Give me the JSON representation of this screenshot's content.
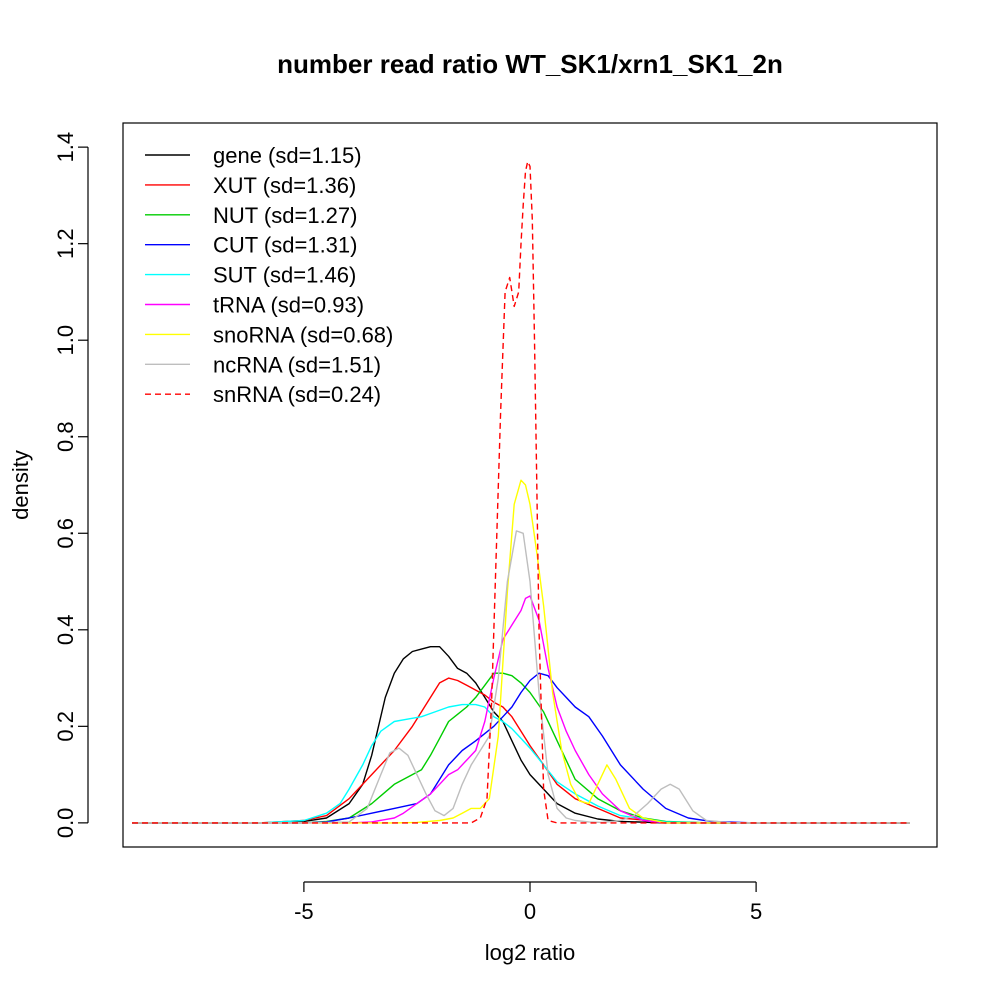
{
  "chart_data": {
    "type": "line",
    "title": "number read ratio WT_SK1/xrn1_SK1_2n",
    "xlabel": "log2 ratio",
    "ylabel": "density",
    "xlim": [
      -9,
      9
    ],
    "ylim": [
      -0.05,
      1.45
    ],
    "xticks": [
      -5,
      0,
      5
    ],
    "yticks": [
      0.0,
      0.2,
      0.4,
      0.6,
      0.8,
      1.0,
      1.2,
      1.4
    ],
    "xtick_labels": [
      "-5",
      "0",
      "5"
    ],
    "ytick_labels": [
      "0.0",
      "0.2",
      "0.4",
      "0.6",
      "0.8",
      "1.0",
      "1.2",
      "1.4"
    ],
    "grid": false,
    "legend_position": "top-left",
    "series": [
      {
        "name": "gene (sd=1.15)",
        "color": "#000000",
        "dashed": false,
        "x": [
          -8.8,
          -6,
          -5,
          -4.5,
          -4,
          -3.7,
          -3.5,
          -3.2,
          -3,
          -2.8,
          -2.6,
          -2.4,
          -2.2,
          -2,
          -1.8,
          -1.6,
          -1.4,
          -1.2,
          -1,
          -0.8,
          -0.6,
          -0.4,
          -0.2,
          0,
          0.3,
          0.6,
          1,
          1.5,
          2,
          3,
          4,
          5,
          8.4
        ],
        "y": [
          0,
          0,
          0.003,
          0.01,
          0.04,
          0.08,
          0.14,
          0.26,
          0.31,
          0.34,
          0.355,
          0.36,
          0.365,
          0.365,
          0.345,
          0.32,
          0.31,
          0.29,
          0.26,
          0.23,
          0.21,
          0.17,
          0.13,
          0.1,
          0.07,
          0.04,
          0.02,
          0.008,
          0.003,
          0,
          0,
          0,
          0
        ]
      },
      {
        "name": "XUT (sd=1.36)",
        "color": "#ff0000",
        "dashed": false,
        "x": [
          -8.8,
          -6,
          -5,
          -4.5,
          -4,
          -3.5,
          -3,
          -2.6,
          -2.2,
          -2,
          -1.8,
          -1.6,
          -1.4,
          -1.2,
          -1,
          -0.8,
          -0.6,
          -0.4,
          -0.2,
          0,
          0.3,
          0.6,
          1,
          1.5,
          2,
          3,
          4,
          8.4
        ],
        "y": [
          0,
          0,
          0.005,
          0.015,
          0.05,
          0.1,
          0.15,
          0.2,
          0.26,
          0.29,
          0.3,
          0.295,
          0.285,
          0.275,
          0.265,
          0.25,
          0.24,
          0.22,
          0.19,
          0.16,
          0.12,
          0.08,
          0.05,
          0.03,
          0.01,
          0.002,
          0,
          0
        ]
      },
      {
        "name": "NUT (sd=1.27)",
        "color": "#00cd00",
        "dashed": false,
        "x": [
          -8.8,
          -6,
          -5,
          -4.5,
          -4,
          -3.5,
          -3,
          -2.7,
          -2.4,
          -2.2,
          -2,
          -1.8,
          -1.6,
          -1.4,
          -1.2,
          -1,
          -0.8,
          -0.6,
          -0.4,
          -0.2,
          0,
          0.3,
          0.6,
          1,
          1.5,
          2,
          2.5,
          3,
          4,
          8.4
        ],
        "y": [
          0,
          0,
          0,
          0.003,
          0.01,
          0.04,
          0.08,
          0.095,
          0.11,
          0.14,
          0.175,
          0.21,
          0.225,
          0.24,
          0.26,
          0.285,
          0.31,
          0.31,
          0.305,
          0.29,
          0.27,
          0.23,
          0.17,
          0.09,
          0.05,
          0.025,
          0.01,
          0.003,
          0,
          0
        ]
      },
      {
        "name": "CUT (sd=1.31)",
        "color": "#0000ff",
        "dashed": false,
        "x": [
          -8.8,
          -6,
          -5,
          -4.5,
          -4,
          -3.5,
          -3,
          -2.5,
          -2.2,
          -2,
          -1.8,
          -1.5,
          -1.2,
          -1,
          -0.8,
          -0.6,
          -0.4,
          -0.2,
          0,
          0.2,
          0.4,
          0.6,
          0.8,
          1,
          1.3,
          1.6,
          2,
          2.5,
          3,
          3.5,
          4,
          5,
          8.4
        ],
        "y": [
          0,
          0,
          0,
          0.002,
          0.01,
          0.02,
          0.03,
          0.04,
          0.06,
          0.09,
          0.12,
          0.15,
          0.17,
          0.185,
          0.2,
          0.22,
          0.24,
          0.27,
          0.295,
          0.31,
          0.305,
          0.28,
          0.26,
          0.24,
          0.22,
          0.18,
          0.12,
          0.07,
          0.03,
          0.01,
          0.003,
          0,
          0
        ]
      },
      {
        "name": "SUT (sd=1.46)",
        "color": "#00ffff",
        "dashed": false,
        "x": [
          -8.8,
          -6,
          -5,
          -4.5,
          -4.2,
          -4,
          -3.7,
          -3.5,
          -3.3,
          -3,
          -2.7,
          -2.4,
          -2.1,
          -1.8,
          -1.5,
          -1.2,
          -1,
          -0.8,
          -0.6,
          -0.4,
          -0.2,
          0,
          0.3,
          0.6,
          1,
          1.5,
          2,
          3,
          4,
          8.4
        ],
        "y": [
          0,
          0,
          0.005,
          0.02,
          0.04,
          0.07,
          0.12,
          0.16,
          0.19,
          0.21,
          0.215,
          0.22,
          0.23,
          0.24,
          0.245,
          0.245,
          0.24,
          0.22,
          0.21,
          0.195,
          0.175,
          0.155,
          0.12,
          0.085,
          0.06,
          0.035,
          0.015,
          0.002,
          0,
          0
        ]
      },
      {
        "name": "tRNA (sd=0.93)",
        "color": "#ff00ff",
        "dashed": false,
        "x": [
          -8.8,
          -5,
          -4,
          -3.5,
          -3,
          -2.8,
          -2.5,
          -2.2,
          -2,
          -1.8,
          -1.6,
          -1.4,
          -1.2,
          -1,
          -0.8,
          -0.6,
          -0.4,
          -0.2,
          -0.1,
          0,
          0.2,
          0.4,
          0.6,
          0.8,
          1,
          1.3,
          1.6,
          2,
          2.5,
          3,
          8.4
        ],
        "y": [
          0,
          0,
          0,
          0.002,
          0.01,
          0.02,
          0.04,
          0.06,
          0.08,
          0.1,
          0.11,
          0.13,
          0.15,
          0.21,
          0.3,
          0.38,
          0.41,
          0.44,
          0.465,
          0.47,
          0.42,
          0.32,
          0.24,
          0.19,
          0.15,
          0.1,
          0.06,
          0.025,
          0.005,
          0,
          0
        ]
      },
      {
        "name": "snoRNA (sd=0.68)",
        "color": "#ffff00",
        "dashed": false,
        "x": [
          -8.8,
          -4,
          -3,
          -2.5,
          -2,
          -1.7,
          -1.5,
          -1.3,
          -1.1,
          -0.9,
          -0.7,
          -0.5,
          -0.35,
          -0.2,
          -0.1,
          0,
          0.15,
          0.3,
          0.5,
          0.7,
          0.9,
          1.1,
          1.3,
          1.5,
          1.7,
          1.9,
          2.2,
          2.5,
          3,
          8.4
        ],
        "y": [
          0,
          0,
          0,
          0.001,
          0.005,
          0.01,
          0.02,
          0.03,
          0.03,
          0.05,
          0.18,
          0.48,
          0.66,
          0.71,
          0.7,
          0.66,
          0.56,
          0.45,
          0.27,
          0.15,
          0.08,
          0.045,
          0.04,
          0.08,
          0.12,
          0.09,
          0.03,
          0.01,
          0,
          0
        ]
      },
      {
        "name": "ncRNA (sd=1.51)",
        "color": "#bebebe",
        "dashed": false,
        "x": [
          -8.8,
          -5,
          -4,
          -3.6,
          -3.3,
          -3.1,
          -2.9,
          -2.7,
          -2.5,
          -2.3,
          -2.1,
          -1.9,
          -1.7,
          -1.5,
          -1.3,
          -1.1,
          -0.9,
          -0.7,
          -0.5,
          -0.3,
          -0.15,
          0,
          0.2,
          0.4,
          0.6,
          0.8,
          1,
          1.3,
          1.6,
          2,
          2.3,
          2.6,
          2.9,
          3.1,
          3.3,
          3.6,
          3.9,
          4.5,
          8.4
        ],
        "y": [
          0,
          0,
          0.002,
          0.03,
          0.1,
          0.145,
          0.155,
          0.14,
          0.1,
          0.06,
          0.025,
          0.015,
          0.03,
          0.08,
          0.12,
          0.15,
          0.18,
          0.3,
          0.5,
          0.605,
          0.6,
          0.5,
          0.27,
          0.1,
          0.03,
          0.01,
          0.005,
          0.002,
          0.001,
          0.005,
          0.015,
          0.04,
          0.07,
          0.08,
          0.07,
          0.025,
          0.005,
          0,
          0
        ]
      },
      {
        "name": "snRNA (sd=0.24)",
        "color": "#ff0000",
        "dashed": true,
        "x": [
          -8.8,
          -2,
          -1.3,
          -1.1,
          -0.95,
          -0.85,
          -0.75,
          -0.65,
          -0.55,
          -0.45,
          -0.35,
          -0.25,
          -0.2,
          -0.15,
          -0.1,
          -0.05,
          0,
          0.05,
          0.1,
          0.15,
          0.2,
          0.3,
          0.4,
          0.6,
          0.8,
          8.4
        ],
        "y": [
          0,
          0,
          0,
          0.01,
          0.05,
          0.25,
          0.55,
          0.85,
          1.1,
          1.13,
          1.07,
          1.1,
          1.2,
          1.28,
          1.35,
          1.37,
          1.36,
          1.25,
          1.0,
          0.7,
          0.4,
          0.07,
          0.005,
          0,
          0,
          0
        ]
      }
    ]
  }
}
